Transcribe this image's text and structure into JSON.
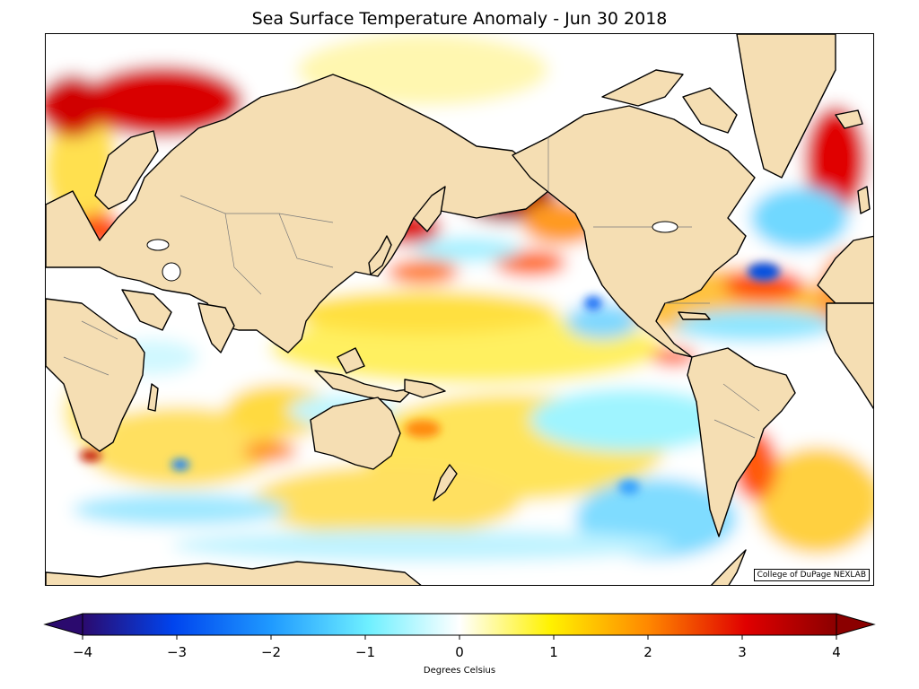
{
  "title": "Sea Surface Temperature Anomaly - Jun 30 2018",
  "credit": "College of DuPage NEXLAB",
  "colorbar": {
    "label": "Degrees Celsius",
    "min": -4,
    "max": 4,
    "ticks": [
      -4,
      -3,
      -2,
      -1,
      0,
      1,
      2,
      3,
      4
    ],
    "tick_labels": [
      "−4",
      "−3",
      "−2",
      "−1",
      "0",
      "1",
      "2",
      "3",
      "4"
    ],
    "extend": "both",
    "colors": [
      "#2b0a6e",
      "#0044ee",
      "#1f9aff",
      "#6ff0ff",
      "#ffffff",
      "#fff200",
      "#ff8800",
      "#e00000",
      "#8b0000"
    ]
  },
  "map": {
    "projection": "equirectangular, centered on the Pacific",
    "land_color": "#f5deb3",
    "coastline_color": "#000000",
    "border_color": "#7a7a7a",
    "ocean_neutral": "#ffffff"
  }
}
